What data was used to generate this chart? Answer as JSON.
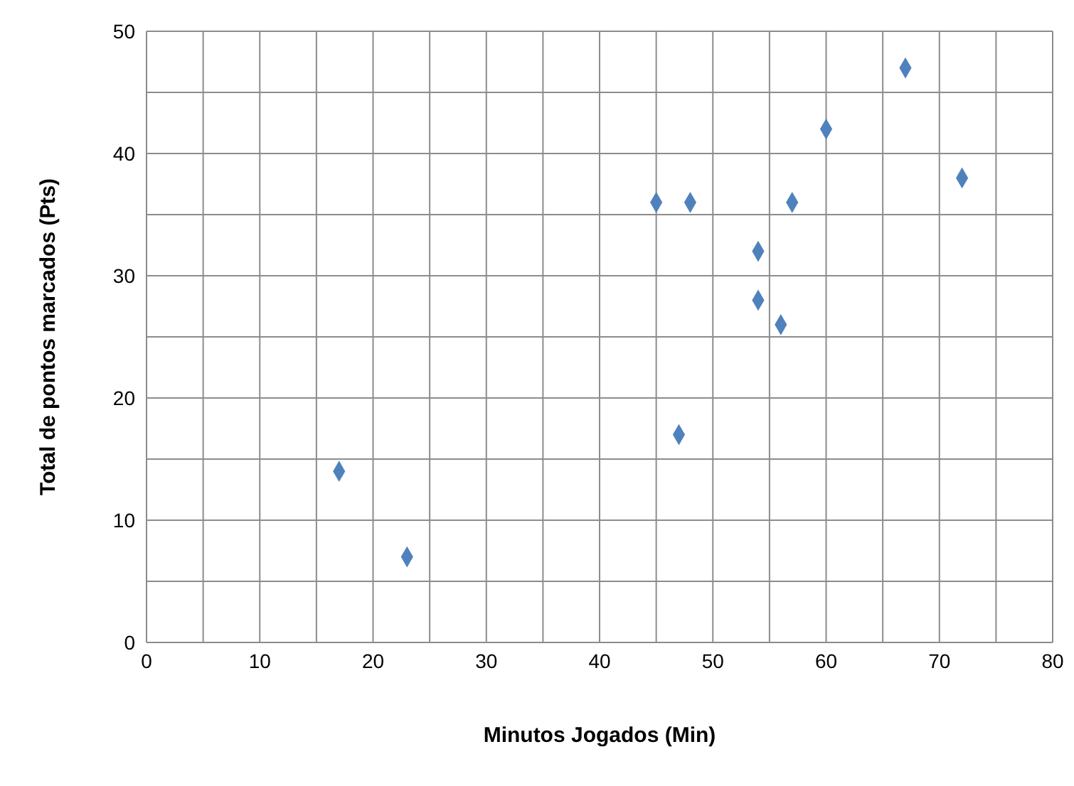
{
  "chart_data": {
    "type": "scatter",
    "xlabel": "Minutos Jogados (Min)",
    "ylabel": "Total de pontos marcados (Pts)",
    "x": [
      17,
      23,
      45,
      47,
      48,
      54,
      54,
      56,
      57,
      60,
      67,
      72
    ],
    "series": [
      {
        "color": "#4f81bd",
        "values": [
          14,
          7,
          36,
          17,
          36,
          32,
          28,
          26,
          36,
          42,
          47,
          38
        ]
      }
    ],
    "xlim": [
      0,
      80
    ],
    "ylim": [
      0,
      50
    ],
    "xticks": [
      0,
      {
        "value": 5,
        "label": null
      },
      10,
      {
        "value": 15,
        "label": null
      },
      20,
      {
        "value": 25,
        "label": null
      },
      30,
      {
        "value": 35,
        "label": null
      },
      40,
      {
        "value": 45,
        "label": null
      },
      50,
      {
        "value": 55,
        "label": null
      },
      60,
      {
        "value": 65,
        "label": null
      },
      70,
      {
        "value": 75,
        "label": null
      },
      80
    ],
    "yticks": [
      0,
      {
        "value": 5,
        "label": null
      },
      10,
      {
        "value": 15,
        "label": null
      },
      20,
      {
        "value": 25,
        "label": null
      },
      30,
      {
        "value": 35,
        "label": null
      },
      40,
      {
        "value": 45,
        "label": null
      },
      50
    ],
    "grid": true,
    "marker": "diamond",
    "legend": false
  }
}
